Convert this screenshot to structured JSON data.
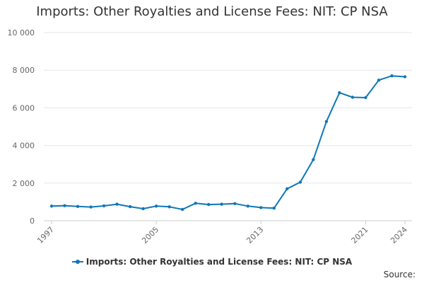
{
  "chart_data": {
    "type": "line",
    "title": "Imports: Other Royalties and License Fees: NIT: CP NSA",
    "xlabel": "",
    "ylabel": "",
    "x": [
      1997,
      1998,
      1999,
      2000,
      2001,
      2002,
      2003,
      2004,
      2005,
      2006,
      2007,
      2008,
      2009,
      2010,
      2011,
      2012,
      2013,
      2014,
      2015,
      2016,
      2017,
      2018,
      2019,
      2020,
      2021,
      2022,
      2023,
      2024
    ],
    "x_tick_labels": [
      "1997",
      "2005",
      "2013",
      "2021",
      "2024"
    ],
    "y_tick_labels": [
      "0",
      "2 000",
      "4 000",
      "6 000",
      "8 000",
      "10 000"
    ],
    "ylim": [
      0,
      10000
    ],
    "grid": true,
    "legend_position": "bottom",
    "series": [
      {
        "name": "Imports: Other Royalties and License Fees: NIT: CP NSA",
        "color": "#1077b7",
        "values": [
          780,
          800,
          760,
          730,
          790,
          880,
          750,
          640,
          780,
          740,
          600,
          930,
          860,
          880,
          910,
          780,
          700,
          670,
          1700,
          2050,
          3250,
          5270,
          6800,
          6560,
          6540,
          7470,
          7700,
          7650
        ]
      }
    ]
  },
  "legend": {
    "label": "Imports: Other Royalties and License Fees: NIT: CP NSA"
  },
  "footer": {
    "source": "Source:"
  }
}
